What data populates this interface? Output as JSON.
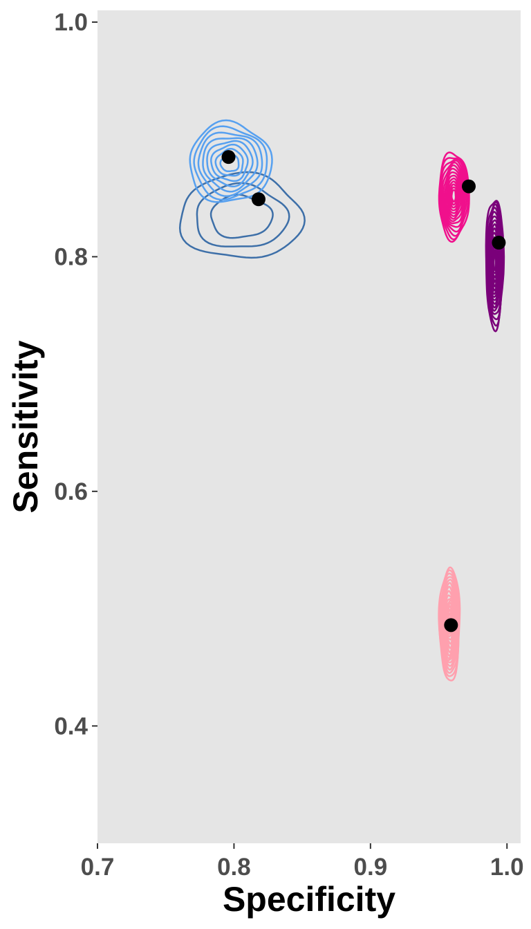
{
  "chart_data": {
    "type": "scatter",
    "title": "",
    "xlabel": "Specificity",
    "ylabel": "Sensitivity",
    "xlim": [
      0.7,
      1.01
    ],
    "ylim": [
      0.3,
      1.01
    ],
    "x_ticks": [
      "0.7",
      "0.8",
      "0.9",
      "1.0"
    ],
    "y_ticks": [
      "0.4",
      "0.6",
      "0.8",
      "1.0"
    ],
    "grid": false,
    "legend": "none",
    "panel_background": "#e5e5e5",
    "point_color": "#000000",
    "series": [
      {
        "color": "#3d6fa8",
        "point": {
          "x": 0.818,
          "y": 0.849
        },
        "contour_center": {
          "x": 0.805,
          "y": 0.834
        },
        "contour_spread": {
          "x": 0.045,
          "y": 0.036
        },
        "contour_levels": 3
      },
      {
        "color": "#56a0f0",
        "point": {
          "x": 0.796,
          "y": 0.885
        },
        "contour_center": {
          "x": 0.797,
          "y": 0.88
        },
        "contour_spread": {
          "x": 0.03,
          "y": 0.034
        },
        "contour_levels": 8
      },
      {
        "color": "#f0108c",
        "point": {
          "x": 0.972,
          "y": 0.86
        },
        "contour_center": {
          "x": 0.961,
          "y": 0.852
        },
        "contour_spread": {
          "x": 0.011,
          "y": 0.037
        },
        "contour_levels": 14
      },
      {
        "color": "#7a007a",
        "point": {
          "x": 0.994,
          "y": 0.812
        },
        "contour_center": {
          "x": 0.991,
          "y": 0.795
        },
        "contour_spread": {
          "x": 0.0065,
          "y": 0.055
        },
        "contour_levels": 16
      },
      {
        "color": "#ffa0ae",
        "point": {
          "x": 0.959,
          "y": 0.486
        },
        "contour_center": {
          "x": 0.958,
          "y": 0.487
        },
        "contour_spread": {
          "x": 0.0075,
          "y": 0.048
        },
        "contour_levels": 16
      }
    ]
  }
}
